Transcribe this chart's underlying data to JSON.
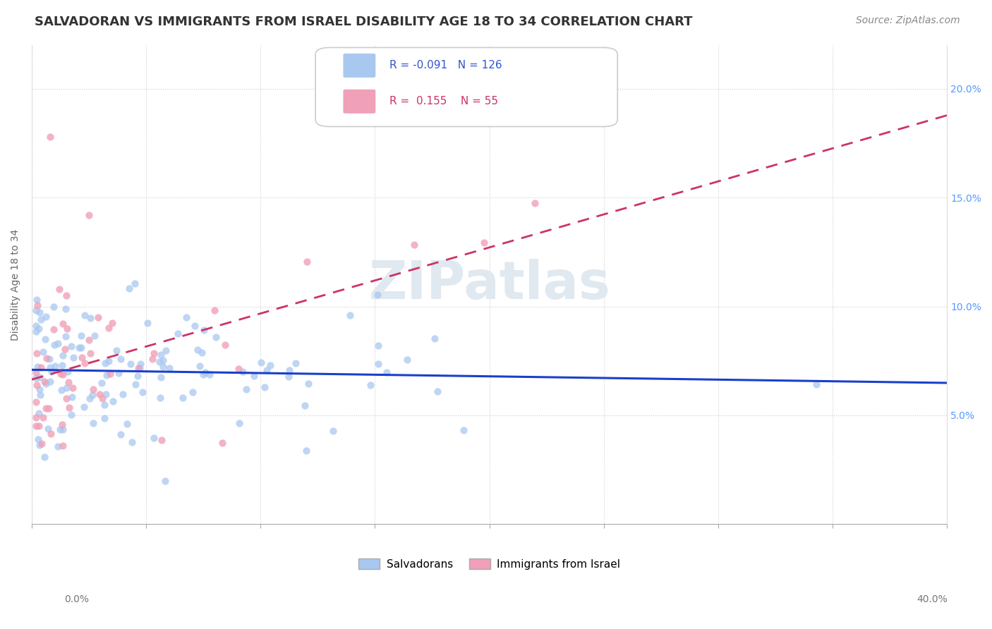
{
  "title": "SALVADORAN VS IMMIGRANTS FROM ISRAEL DISABILITY AGE 18 TO 34 CORRELATION CHART",
  "source": "Source: ZipAtlas.com",
  "ylabel": "Disability Age 18 to 34",
  "watermark": "ZIPatlas",
  "xlim": [
    0.0,
    0.4
  ],
  "ylim": [
    0.0,
    0.22
  ],
  "legend_R_sal": "-0.091",
  "legend_N_sal": "126",
  "legend_R_isr": "0.155",
  "legend_N_isr": "55",
  "salvadoran_color": "#a8c8f0",
  "israel_color": "#f0a0b8",
  "trendline_salvadoran_color": "#1a3fcc",
  "trendline_israel_color": "#cc3366",
  "background_color": "#ffffff",
  "title_fontsize": 13,
  "axis_label_fontsize": 10,
  "tick_fontsize": 10,
  "source_fontsize": 10,
  "legend_text_sal_color": "#3355cc",
  "legend_text_isr_color": "#cc3366",
  "ytick_color": "#5599ff",
  "xtick_color": "#777777"
}
